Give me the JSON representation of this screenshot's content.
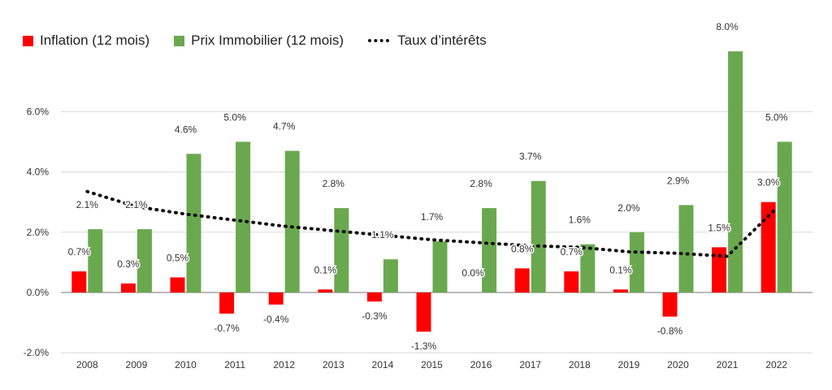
{
  "chart_data": {
    "type": "bar",
    "title": "",
    "xlabel": "",
    "ylabel": "",
    "ylim": [
      -2,
      8
    ],
    "yticks": [
      "-2.0%",
      "0.0%",
      "2.0%",
      "4.0%",
      "6.0%"
    ],
    "ytick_values": [
      -2,
      0,
      2,
      4,
      6
    ],
    "categories": [
      "2008",
      "2009",
      "2010",
      "2011",
      "2012",
      "2013",
      "2014",
      "2015",
      "2016",
      "2017",
      "2018",
      "2019",
      "2020",
      "2021",
      "2022"
    ],
    "series": [
      {
        "name": "Inflation (12 mois)",
        "kind": "bar",
        "color": "#ff0000",
        "values": [
          0.7,
          0.3,
          0.5,
          -0.7,
          -0.4,
          0.1,
          -0.3,
          -1.3,
          0.0,
          0.8,
          0.7,
          0.1,
          -0.8,
          1.5,
          3.0
        ],
        "labels": [
          "0.7%",
          "0.3%",
          "0.5%",
          "-0.7%",
          "-0.4%",
          "0.1%",
          "-0.3%",
          "-1.3%",
          "0.0%",
          "0.8%",
          "0.7%",
          "0.1%",
          "-0.8%",
          "1.5%",
          "3.0%"
        ]
      },
      {
        "name": "Prix Immobilier (12 mois)",
        "kind": "bar",
        "color": "#6aa84f",
        "values": [
          2.1,
          2.1,
          4.6,
          5.0,
          4.7,
          2.8,
          1.1,
          1.7,
          2.8,
          3.7,
          1.6,
          2.0,
          2.9,
          8.0,
          5.0
        ],
        "labels": [
          "2.1%",
          "2.1%",
          "4.6%",
          "5.0%",
          "4.7%",
          "2.8%",
          "1.1%",
          "1.7%",
          "2.8%",
          "3.7%",
          "1.6%",
          "2.0%",
          "2.9%",
          "8.0%",
          "5.0%"
        ]
      },
      {
        "name": "Taux d’intérêts",
        "kind": "line",
        "style": "dotted",
        "color": "#111111",
        "values": [
          3.35,
          2.85,
          2.6,
          2.4,
          2.2,
          2.05,
          1.9,
          1.75,
          1.65,
          1.55,
          1.5,
          1.35,
          1.3,
          1.2,
          2.8
        ]
      }
    ],
    "legend": "top-left",
    "grid": true
  }
}
